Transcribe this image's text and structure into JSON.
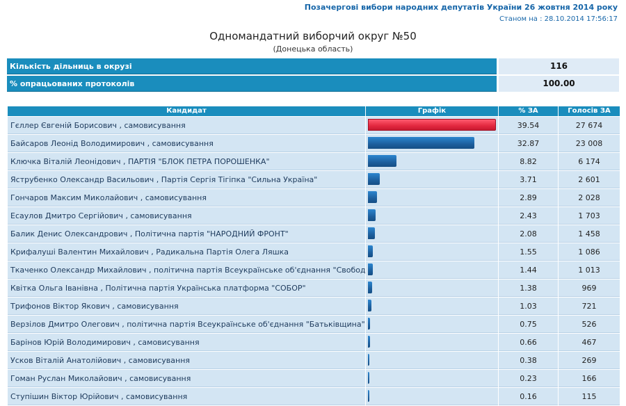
{
  "header": {
    "title": "Позачергові вибори народних депутатів України 26 жовтня 2014 року",
    "status_date": "Станом на : 28.10.2014 17:56:17"
  },
  "district": {
    "title": "Одномандатний виборчий округ №50",
    "region": "(Донецька область)"
  },
  "summary": [
    {
      "label": "Кількість дільниць в окрузі",
      "value": "116"
    },
    {
      "label": "% опрацьованих протоколів",
      "value": "100.00"
    }
  ],
  "table": {
    "headers": {
      "candidate": "Кандидат",
      "graph": "Графік",
      "pct": "% ЗА",
      "votes": "Голосів ЗА"
    },
    "rows": [
      {
        "name": "Гєллер Євгеній Борисович",
        "party": ", самовисування",
        "pct": 39.54,
        "pct_text": "39.54",
        "votes": "27 674"
      },
      {
        "name": "Байсаров Леонід Володимирович",
        "party": ", самовисування",
        "pct": 32.87,
        "pct_text": "32.87",
        "votes": "23 008"
      },
      {
        "name": "Ключка Віталій Леонідович",
        "party": ", ПАРТІЯ \"БЛОК ПЕТРА ПОРОШЕНКА\"",
        "pct": 8.82,
        "pct_text": "8.82",
        "votes": "6 174"
      },
      {
        "name": "Яструбенко Олександр Васильович",
        "party": ", Партія Сергія Тігіпка \"Сильна Україна\"",
        "pct": 3.71,
        "pct_text": "3.71",
        "votes": "2 601"
      },
      {
        "name": "Гончаров Максим Миколайович",
        "party": ", самовисування",
        "pct": 2.89,
        "pct_text": "2.89",
        "votes": "2 028"
      },
      {
        "name": "Есаулов Дмитро Сергійович",
        "party": ", самовисування",
        "pct": 2.43,
        "pct_text": "2.43",
        "votes": "1 703"
      },
      {
        "name": "Балик Денис Олександрович",
        "party": ", Політична партія \"НАРОДНИЙ ФРОНТ\"",
        "pct": 2.08,
        "pct_text": "2.08",
        "votes": "1 458"
      },
      {
        "name": "Крифалуші Валентин Михайлович",
        "party": ", Радикальна Партія Олега Ляшка",
        "pct": 1.55,
        "pct_text": "1.55",
        "votes": "1 086"
      },
      {
        "name": "Ткаченко Олександр Михайлович",
        "party": ", політична партія Всеукраїнське об'єднання \"Свобода\"",
        "pct": 1.44,
        "pct_text": "1.44",
        "votes": "1 013"
      },
      {
        "name": "Квітка Ольга Іванівна",
        "party": ", Політична партія Українська платформа \"СОБОР\"",
        "pct": 1.38,
        "pct_text": "1.38",
        "votes": "969"
      },
      {
        "name": "Трифонов Віктор Якович",
        "party": ", самовисування",
        "pct": 1.03,
        "pct_text": "1.03",
        "votes": "721"
      },
      {
        "name": "Верзілов Дмитро Олегович",
        "party": ", політична партія Всеукраїнське об'єднання \"Батьківщина\"",
        "pct": 0.75,
        "pct_text": "0.75",
        "votes": "526"
      },
      {
        "name": "Барінов Юрій Володимирович",
        "party": ", самовисування",
        "pct": 0.66,
        "pct_text": "0.66",
        "votes": "467"
      },
      {
        "name": "Усков Віталій Анатолійович",
        "party": ", самовисування",
        "pct": 0.38,
        "pct_text": "0.38",
        "votes": "269"
      },
      {
        "name": "Гоман Руслан Миколайович",
        "party": ", самовисування",
        "pct": 0.23,
        "pct_text": "0.23",
        "votes": "166"
      },
      {
        "name": "Ступішин Віктор Юрійович",
        "party": ", самовисування",
        "pct": 0.16,
        "pct_text": "0.16",
        "votes": "115"
      }
    ]
  },
  "colors": {
    "header_bg": "#1a8dbd",
    "row_bg": "#d3e5f3",
    "leader_bar": "#e2283f",
    "bar": "#1d5f9e"
  }
}
